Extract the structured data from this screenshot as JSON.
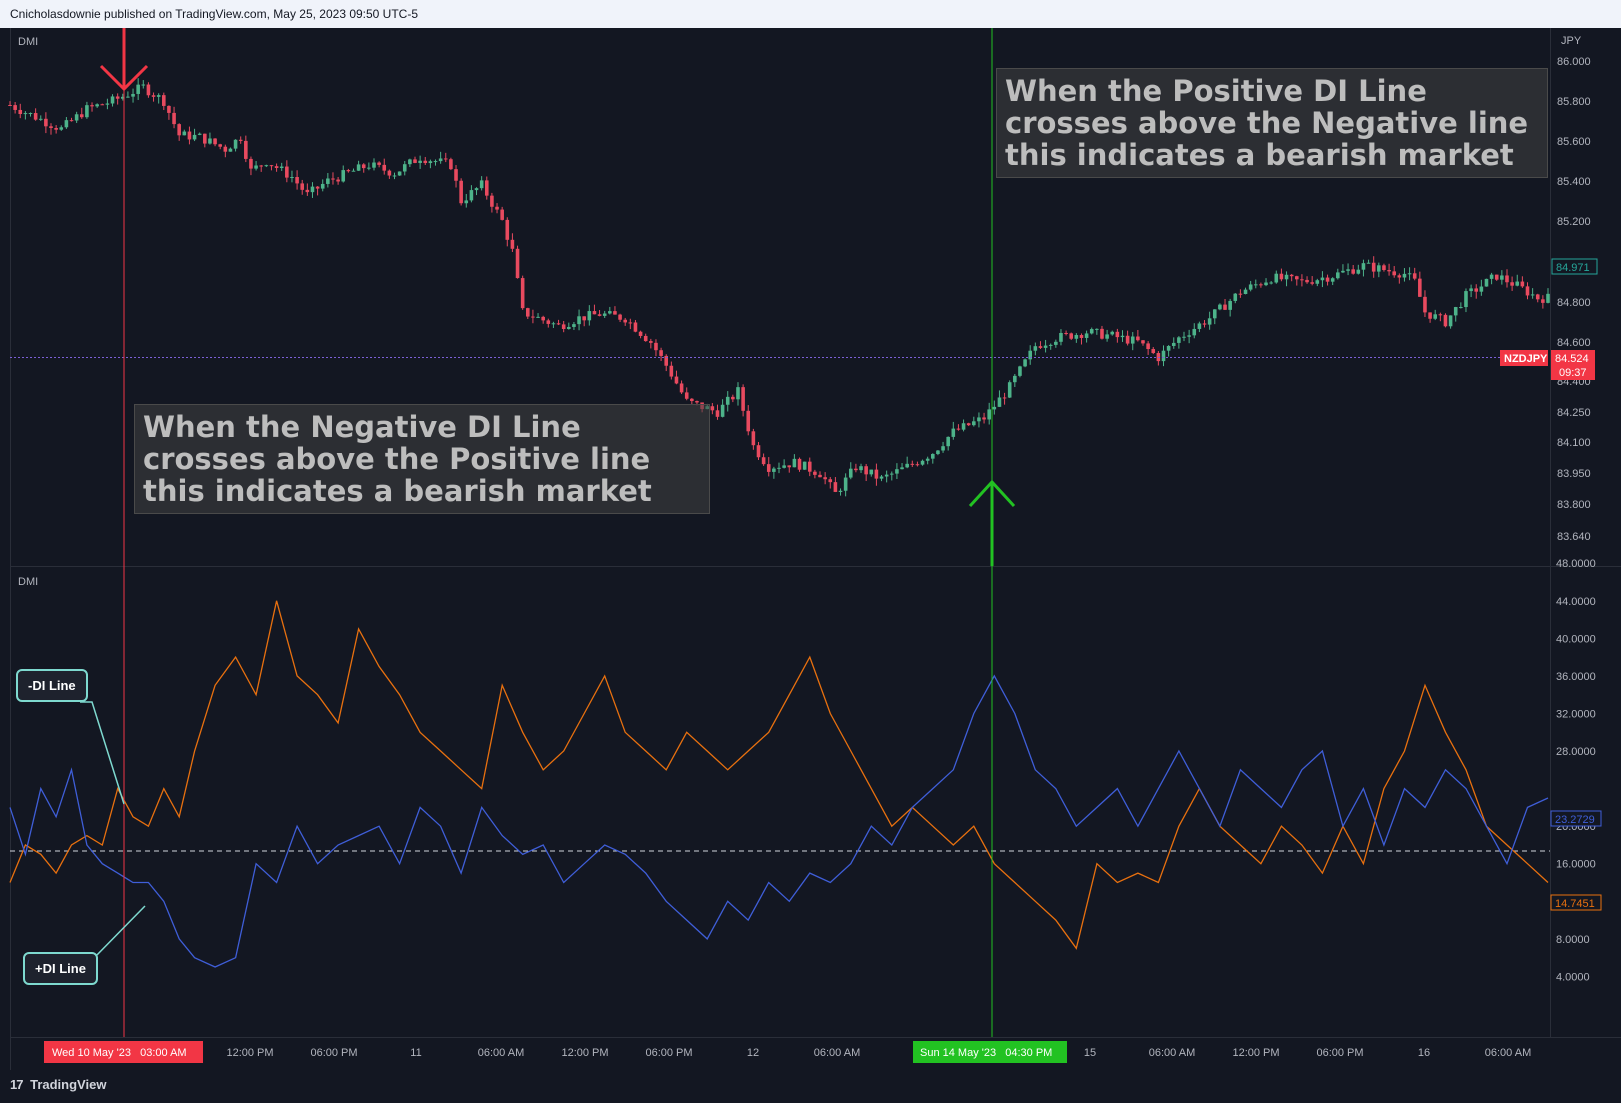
{
  "header": {
    "publisher": "Cnicholasdownie published on TradingView.com, May 25, 2023 09:50 UTC-5"
  },
  "brand": {
    "logo_text": "TradingView",
    "logo_mark": "17",
    "logo_icon": "tradingview-logo-icon"
  },
  "colors": {
    "up": "#26a69a",
    "up_body": "#4db38a",
    "down": "#f23645",
    "down_body": "#e84a5f",
    "minus_di": "#e8700f",
    "plus_di": "#3f5ed8",
    "marker_red": "#f23645",
    "marker_green": "#22c222"
  },
  "price_pane": {
    "indicator_label": "DMI",
    "currency": "JPY",
    "symbol": "NZDJPY",
    "last_price": "84.524",
    "countdown": "09:37",
    "top_tag": "84.971",
    "price_line": 84.524
  },
  "dmi_pane": {
    "indicator_label": "DMI",
    "plus_tag": "23.2729",
    "minus_tag": "14.7451",
    "threshold": 20
  },
  "notes": {
    "top": "When the Positive DI Line crosses above the Negative line this indicates a bearish market",
    "bottom": "When the Negative DI Line crosses above the Positive line this indicates a bearish market"
  },
  "callouts": {
    "minus": "-DI Line",
    "plus": "+DI Line"
  },
  "time_markers": {
    "red": "Wed 10 May '23   03:00 AM",
    "green": "Sun 14 May '23   04:30 PM"
  },
  "arrows": {
    "down_icon": "red-down-arrow-icon",
    "up_icon": "green-up-arrow-icon"
  },
  "chart_data": [
    {
      "type": "candlestick",
      "title": "",
      "symbol": "NZDJPY",
      "y_ticks": [
        "86.000",
        "85.800",
        "85.600",
        "85.400",
        "85.200",
        "84.800",
        "84.600",
        "84.400",
        "84.250",
        "84.100",
        "83.950",
        "83.800",
        "83.640"
      ],
      "x_tick_labels": [
        "12:00 PM",
        "06:00 PM",
        "11",
        "06:00 AM",
        "12:00 PM",
        "06:00 PM",
        "12",
        "06:00 AM",
        "15",
        "06:00 AM",
        "12:00 PM",
        "06:00 PM",
        "16",
        "06:00 AM"
      ],
      "close_path": [
        [
          0,
          85.78
        ],
        [
          10,
          85.66
        ],
        [
          15,
          85.76
        ],
        [
          20,
          85.8
        ],
        [
          26,
          85.87
        ],
        [
          30,
          85.8
        ],
        [
          33,
          85.63
        ],
        [
          37,
          85.62
        ],
        [
          42,
          85.56
        ],
        [
          45,
          85.62
        ],
        [
          47,
          85.45
        ],
        [
          50,
          85.5
        ],
        [
          55,
          85.42
        ],
        [
          58,
          85.33
        ],
        [
          62,
          85.4
        ],
        [
          70,
          85.48
        ],
        [
          75,
          85.44
        ],
        [
          80,
          85.52
        ],
        [
          86,
          85.48
        ],
        [
          88,
          85.3
        ],
        [
          92,
          85.38
        ],
        [
          96,
          85.2
        ],
        [
          98,
          85.05
        ],
        [
          100,
          84.75
        ],
        [
          103,
          84.72
        ],
        [
          107,
          84.68
        ],
        [
          111,
          84.72
        ],
        [
          115,
          84.74
        ],
        [
          120,
          84.72
        ],
        [
          125,
          84.6
        ],
        [
          128,
          84.48
        ],
        [
          132,
          84.3
        ],
        [
          138,
          84.25
        ],
        [
          142,
          84.35
        ],
        [
          145,
          84.08
        ],
        [
          148,
          83.98
        ],
        [
          153,
          84.0
        ],
        [
          158,
          83.95
        ],
        [
          161,
          83.85
        ],
        [
          165,
          83.98
        ],
        [
          170,
          83.92
        ],
        [
          175,
          83.98
        ],
        [
          180,
          84.05
        ],
        [
          184,
          84.15
        ],
        [
          190,
          84.22
        ],
        [
          195,
          84.37
        ],
        [
          200,
          84.58
        ],
        [
          204,
          84.62
        ],
        [
          210,
          84.65
        ],
        [
          215,
          84.63
        ],
        [
          220,
          84.6
        ],
        [
          224,
          84.52
        ],
        [
          228,
          84.62
        ],
        [
          234,
          84.72
        ],
        [
          240,
          84.85
        ],
        [
          246,
          84.92
        ],
        [
          252,
          84.9
        ],
        [
          258,
          84.93
        ],
        [
          264,
          84.98
        ],
        [
          268,
          84.96
        ],
        [
          272,
          84.94
        ],
        [
          274,
          84.9
        ],
        [
          276,
          84.75
        ],
        [
          280,
          84.7
        ],
        [
          284,
          84.83
        ],
        [
          290,
          84.93
        ],
        [
          294,
          84.88
        ],
        [
          298,
          84.82
        ]
      ]
    },
    {
      "type": "line",
      "title": "",
      "y_ticks": [
        "48.0000",
        "44.0000",
        "40.0000",
        "36.0000",
        "32.0000",
        "28.0000",
        "20.0000",
        "16.0000",
        "12.0000",
        "8.0000",
        "4.0000"
      ],
      "ylim": [
        0,
        48
      ],
      "series": [
        {
          "name": "-DI Line",
          "color": "#e8700f",
          "x": [
            0,
            3,
            6,
            9,
            12,
            15,
            18,
            21,
            24,
            27,
            30,
            33,
            36,
            40,
            44,
            48,
            52,
            56,
            60,
            64,
            68,
            72,
            76,
            80,
            84,
            88,
            92,
            96,
            100,
            104,
            108,
            112,
            116,
            120,
            124,
            128,
            132,
            136,
            140,
            144,
            148,
            152,
            156,
            160,
            164,
            168,
            172,
            176,
            180,
            184,
            188,
            192,
            196,
            200,
            204,
            208,
            212,
            216,
            220,
            224,
            228,
            232,
            236,
            240,
            244,
            248,
            252,
            256,
            260,
            264,
            268,
            272,
            276,
            280,
            284,
            288,
            292,
            296,
            300
          ],
          "y": [
            14,
            18,
            17,
            15,
            18,
            19,
            18,
            24,
            21,
            20,
            24,
            21,
            28,
            35,
            38,
            34,
            44,
            36,
            34,
            31,
            41,
            37,
            34,
            30,
            28,
            26,
            24,
            35,
            30,
            26,
            28,
            32,
            36,
            30,
            28,
            26,
            30,
            28,
            26,
            28,
            30,
            34,
            38,
            32,
            28,
            24,
            20,
            22,
            20,
            18,
            20,
            16,
            14,
            12,
            10,
            7,
            16,
            14,
            15,
            14,
            20,
            24,
            20,
            18,
            16,
            20,
            18,
            15,
            20,
            16,
            24,
            28,
            35,
            30,
            26,
            20,
            18,
            16,
            14
          ]
        },
        {
          "name": "+DI Line",
          "color": "#3f5ed8",
          "x": [
            0,
            3,
            6,
            9,
            12,
            15,
            18,
            21,
            24,
            27,
            30,
            33,
            36,
            40,
            44,
            48,
            52,
            56,
            60,
            64,
            68,
            72,
            76,
            80,
            84,
            88,
            92,
            96,
            100,
            104,
            108,
            112,
            116,
            120,
            124,
            128,
            132,
            136,
            140,
            144,
            148,
            152,
            156,
            160,
            164,
            168,
            172,
            176,
            180,
            184,
            188,
            192,
            196,
            200,
            204,
            208,
            212,
            216,
            220,
            224,
            228,
            232,
            236,
            240,
            244,
            248,
            252,
            256,
            260,
            264,
            268,
            272,
            276,
            280,
            284,
            288,
            292,
            296,
            300
          ],
          "y": [
            22,
            17,
            24,
            21,
            26,
            18,
            16,
            15,
            14,
            14,
            12,
            8,
            6,
            5,
            6,
            16,
            14,
            20,
            16,
            18,
            19,
            20,
            16,
            22,
            20,
            15,
            22,
            19,
            17,
            18,
            14,
            16,
            18,
            17,
            15,
            12,
            10,
            8,
            12,
            10,
            14,
            12,
            15,
            14,
            16,
            20,
            18,
            22,
            24,
            26,
            32,
            36,
            32,
            26,
            24,
            20,
            22,
            24,
            20,
            24,
            28,
            24,
            20,
            26,
            24,
            22,
            26,
            28,
            20,
            24,
            18,
            24,
            22,
            26,
            24,
            20,
            16,
            22,
            23
          ]
        }
      ]
    }
  ]
}
